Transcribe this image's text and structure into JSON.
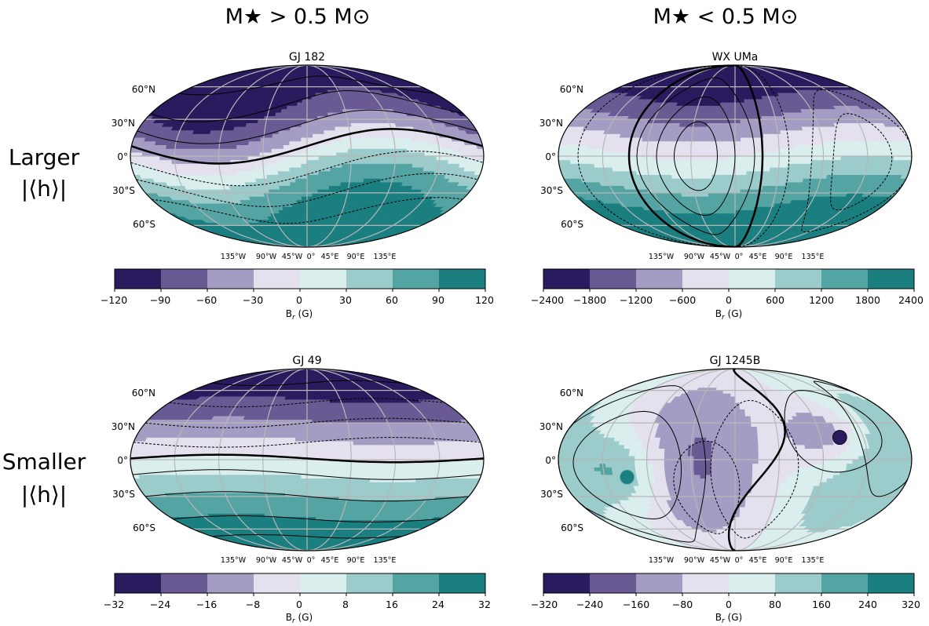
{
  "column_titles": [
    "M★ > 0.5 M⊙",
    "M★ < 0.5 M⊙"
  ],
  "row_labels": [
    {
      "line1": "Larger",
      "line2": "|⟨h⟩|"
    },
    {
      "line1": "Smaller",
      "line2": "|⟨h⟩|"
    }
  ],
  "colors": {
    "levels": [
      "#2a1a5e",
      "#6a5a94",
      "#a59cc4",
      "#e4e0ee",
      "#daeeee",
      "#9ccbcb",
      "#55a4a4",
      "#1b7f80"
    ],
    "graticule": "#b7b7b7"
  },
  "chart_data": [
    {
      "type": "heatmap",
      "projection": "mollweide",
      "title": "GJ 182",
      "lat_labels": [
        "60°N",
        "30°N",
        "0°",
        "30°S",
        "60°S"
      ],
      "lon_labels": [
        "135°W",
        "90°W",
        "45°W",
        "0°",
        "45°E",
        "90°E",
        "135°E"
      ],
      "colorbar": {
        "ticks": [
          "−120",
          "−90",
          "−60",
          "−30",
          "0",
          "30",
          "60",
          "90",
          "120"
        ],
        "label": "B",
        "label_sub": "r",
        "label_unit": " (G)"
      },
      "vmax": 120
    },
    {
      "type": "heatmap",
      "projection": "mollweide",
      "title": "WX UMa",
      "lat_labels": [
        "60°N",
        "30°N",
        "0°",
        "30°S",
        "60°S"
      ],
      "lon_labels": [
        "135°W",
        "90°W",
        "45°W",
        "0°",
        "45°E",
        "90°E",
        "135°E"
      ],
      "colorbar": {
        "ticks": [
          "−2400",
          "−1800",
          "−1200",
          "−600",
          "0",
          "600",
          "1200",
          "1800",
          "2400"
        ],
        "label": "B",
        "label_sub": "r",
        "label_unit": " (G)"
      },
      "vmax": 2400
    },
    {
      "type": "heatmap",
      "projection": "mollweide",
      "title": "GJ 49",
      "lat_labels": [
        "60°N",
        "30°N",
        "0°",
        "30°S",
        "60°S"
      ],
      "lon_labels": [
        "135°W",
        "90°W",
        "45°W",
        "0°",
        "45°E",
        "90°E",
        "135°E"
      ],
      "colorbar": {
        "ticks": [
          "−32",
          "−24",
          "−16",
          "−8",
          "0",
          "8",
          "16",
          "24",
          "32"
        ],
        "label": "B",
        "label_sub": "r",
        "label_unit": " (G)"
      },
      "vmax": 32
    },
    {
      "type": "heatmap",
      "projection": "mollweide",
      "title": "GJ 1245B",
      "lat_labels": [
        "60°N",
        "30°N",
        "0°",
        "30°S",
        "60°S"
      ],
      "lon_labels": [
        "135°W",
        "90°W",
        "45°W",
        "0°",
        "45°E",
        "90°E",
        "135°E"
      ],
      "colorbar": {
        "ticks": [
          "−320",
          "−240",
          "−160",
          "−80",
          "0",
          "80",
          "160",
          "240",
          "320"
        ],
        "label": "B",
        "label_sub": "r",
        "label_unit": " (G)"
      },
      "vmax": 320
    }
  ]
}
